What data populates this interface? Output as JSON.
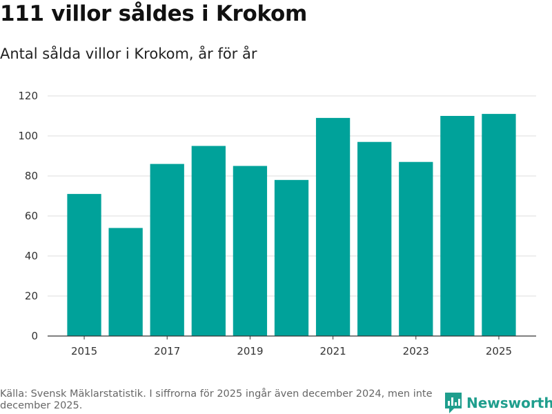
{
  "header": {
    "title": "111 villor såldes i Krokom",
    "subtitle": "Antal sålda villor i Krokom, år för år"
  },
  "footer": {
    "source": "Källa: Svensk Mäklarstatistik. I siffrorna för 2025 ingår även december 2024, men inte december 2025.",
    "brand": "Newsworthy"
  },
  "colors": {
    "bar": "#00a29a",
    "grid": "#dddddd",
    "axis": "#333333",
    "brand": "#1f9e8d"
  },
  "chart_data": {
    "type": "bar",
    "title": "111 villor såldes i Krokom",
    "subtitle": "Antal sålda villor i Krokom, år för år",
    "xlabel": "",
    "ylabel": "",
    "categories": [
      "2015",
      "2016",
      "2017",
      "2018",
      "2019",
      "2020",
      "2021",
      "2022",
      "2023",
      "2024",
      "2025"
    ],
    "values": [
      71,
      54,
      86,
      95,
      85,
      78,
      109,
      97,
      87,
      110,
      111
    ],
    "x_tick_labels": [
      "2015",
      "2017",
      "2019",
      "2021",
      "2023",
      "2025"
    ],
    "y_ticks": [
      0,
      20,
      40,
      60,
      80,
      100,
      120
    ],
    "ylim": [
      0,
      120
    ],
    "grid": true
  }
}
